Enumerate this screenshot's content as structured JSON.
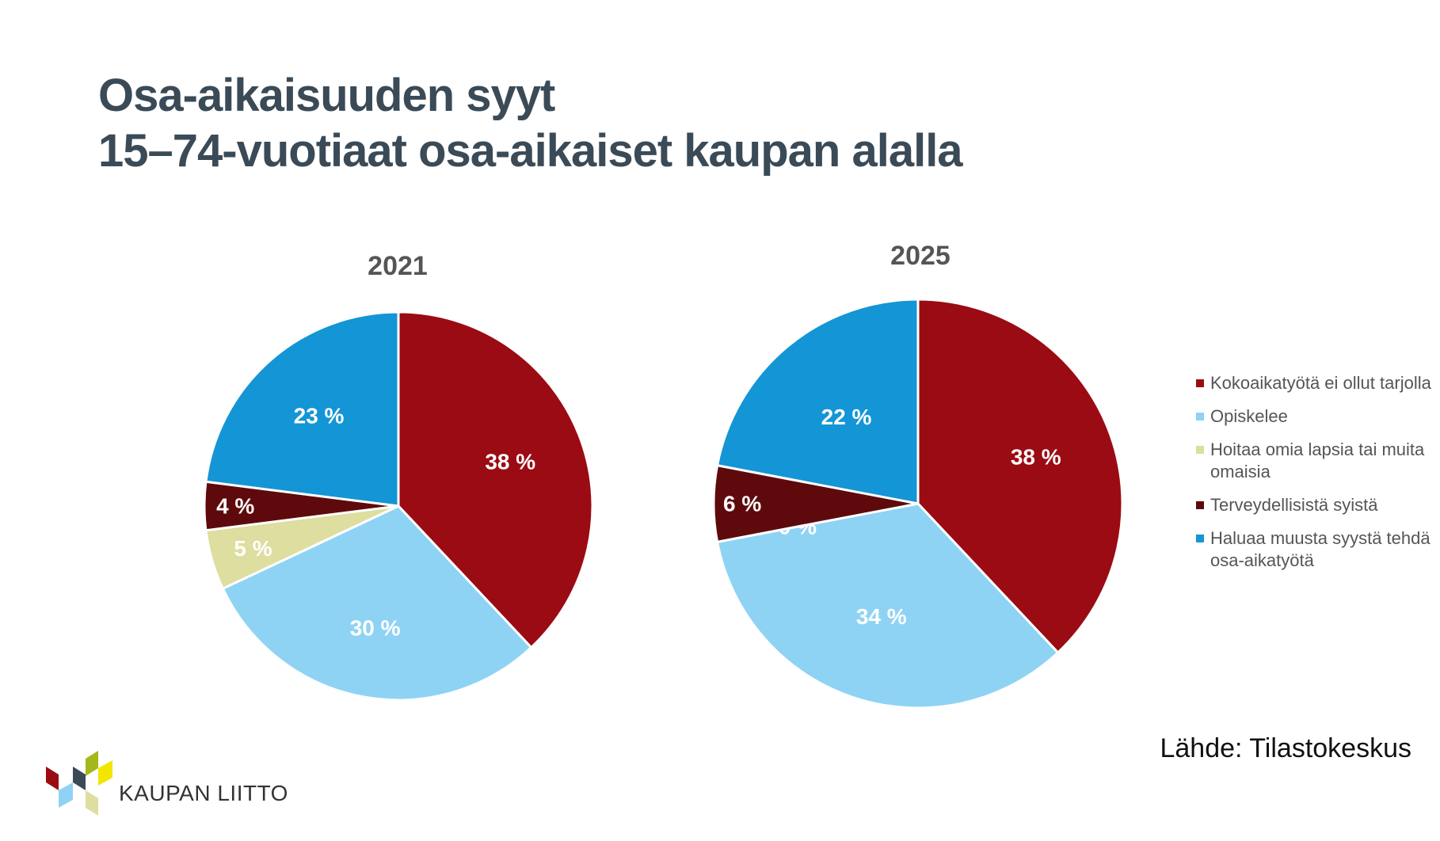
{
  "title_line1": "Osa-aikaisuuden syyt",
  "title_line2": "15–74-vuotiaat osa-aikaiset kaupan alalla",
  "source": "Lähde: Tilastokeskus",
  "logo_text": "KAUPAN LIITTO",
  "legend": [
    {
      "label": "Kokoaikatyötä ei ollut tarjolla",
      "color": "#9b0b13"
    },
    {
      "label": "Opiskelee",
      "color": "#8fd3f4"
    },
    {
      "label": "Hoitaa omia lapsia tai muita omaisia",
      "color": "#ddde9f"
    },
    {
      "label": "Terveydellisistä syistä",
      "color": "#5e0a0c"
    },
    {
      "label": "Haluaa muusta syystä tehdä osa-aikatyötä",
      "color": "#1495d5"
    }
  ],
  "chart_data": [
    {
      "type": "pie",
      "title": "2021",
      "categories": [
        "Kokoaikatyötä ei ollut tarjolla",
        "Opiskelee",
        "Hoitaa omia lapsia tai muita omaisia",
        "Terveydellisistä syistä",
        "Haluaa muusta syystä tehdä osa-aikatyötä"
      ],
      "values": [
        38,
        30,
        5,
        4,
        23
      ],
      "labels": [
        "38 %",
        "30 %",
        "5 %",
        "4 %",
        "23 %"
      ],
      "colors": [
        "#9b0b13",
        "#8fd3f4",
        "#ddde9f",
        "#5e0a0c",
        "#1495d5"
      ],
      "start_angle_deg": 0,
      "direction": "clockwise"
    },
    {
      "type": "pie",
      "title": "2025",
      "categories": [
        "Kokoaikatyötä ei ollut tarjolla",
        "Opiskelee",
        "Hoitaa omia lapsia tai muita omaisia",
        "Terveydellisistä syistä",
        "Haluaa muusta syystä tehdä osa-aikatyötä"
      ],
      "values": [
        38,
        34,
        0,
        6,
        22
      ],
      "labels": [
        "38 %",
        "34 %",
        "0 %",
        "6 %",
        "22 %"
      ],
      "colors": [
        "#9b0b13",
        "#8fd3f4",
        "#ddde9f",
        "#5e0a0c",
        "#1495d5"
      ],
      "start_angle_deg": 0,
      "direction": "clockwise"
    }
  ],
  "logo_colors": [
    "#9b0b13",
    "#8fd3f4",
    "#3a4a57",
    "#a5b81b",
    "#ddde9f",
    "#f2e600"
  ]
}
